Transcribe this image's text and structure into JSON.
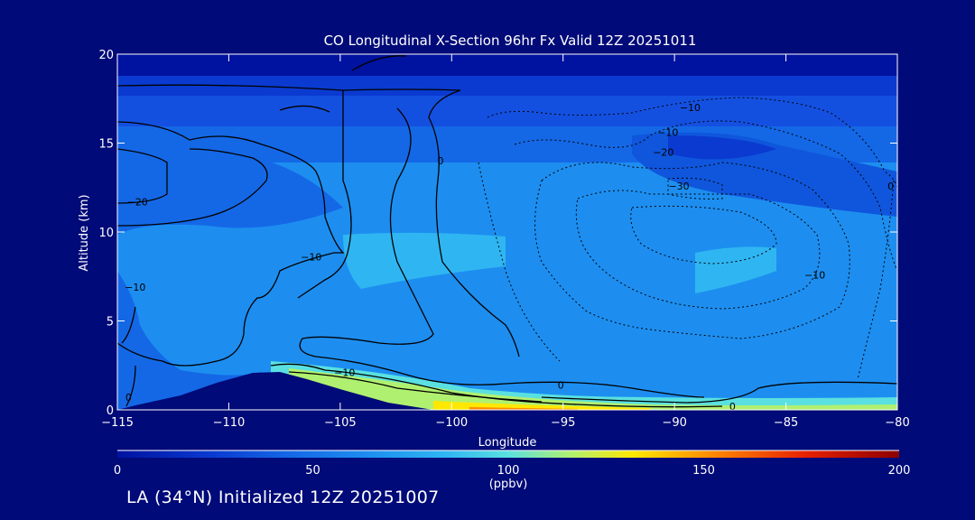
{
  "chart_data": {
    "type": "heatmap",
    "title": "CO Longitudinal X-Section 96hr  Fx Valid 12Z 20251011",
    "xlabel": "Longitude",
    "ylabel": "Altitude (km)",
    "xlim": [
      -115,
      -80
    ],
    "ylim": [
      0,
      20
    ],
    "x_ticks": [
      -115,
      -110,
      -105,
      -100,
      -95,
      -90,
      -85,
      -80
    ],
    "x_tick_labels": [
      "−115",
      "−110",
      "−105",
      "−100",
      "−95",
      "−90",
      "−85",
      "−80"
    ],
    "y_ticks": [
      0,
      5,
      10,
      15,
      20
    ],
    "y_tick_labels": [
      "0",
      "5",
      "10",
      "15",
      "20"
    ],
    "colorbar": {
      "label": "(ppbv)",
      "min": 0,
      "max": 200,
      "ticks": [
        0,
        50,
        100,
        150,
        200
      ],
      "tick_labels": [
        "0",
        "50",
        "100",
        "150",
        "200"
      ],
      "colors": [
        "#0012a0",
        "#0a3ad0",
        "#1468e6",
        "#1d8ef0",
        "#2fb6f2",
        "#5ae0e0",
        "#b0f070",
        "#ffe800",
        "#ff8a00",
        "#e82000",
        "#8c0000"
      ]
    },
    "contour_labels": [
      {
        "text": "−10",
        "lon": -89.3,
        "alt": 17.0
      },
      {
        "text": "−10",
        "lon": -90.3,
        "alt": 15.6
      },
      {
        "text": "−20",
        "lon": -90.5,
        "alt": 14.5
      },
      {
        "text": "−30",
        "lon": -89.8,
        "alt": 12.6
      },
      {
        "text": "−10",
        "lon": -83.7,
        "alt": 7.6
      },
      {
        "text": "−10",
        "lon": -114.2,
        "alt": 6.9
      },
      {
        "text": "−20",
        "lon": -114.1,
        "alt": 11.7
      },
      {
        "text": "−10",
        "lon": -106.3,
        "alt": 8.6
      },
      {
        "text": "−10",
        "lon": -104.8,
        "alt": 2.1
      },
      {
        "text": "0",
        "lon": -95.1,
        "alt": 1.4
      },
      {
        "text": "0",
        "lon": -100.5,
        "alt": 14.0
      },
      {
        "text": "0",
        "lon": -87.4,
        "alt": 0.2
      },
      {
        "text": "0",
        "lon": -80.3,
        "alt": 12.6
      },
      {
        "text": "0",
        "lon": -114.5,
        "alt": 0.7
      }
    ],
    "colors": {
      "background": "#000a78",
      "axis": "#ffffff",
      "terrain": "#000a78"
    }
  },
  "footer": {
    "text": "LA (34°N) Initialized 12Z 20251007"
  }
}
